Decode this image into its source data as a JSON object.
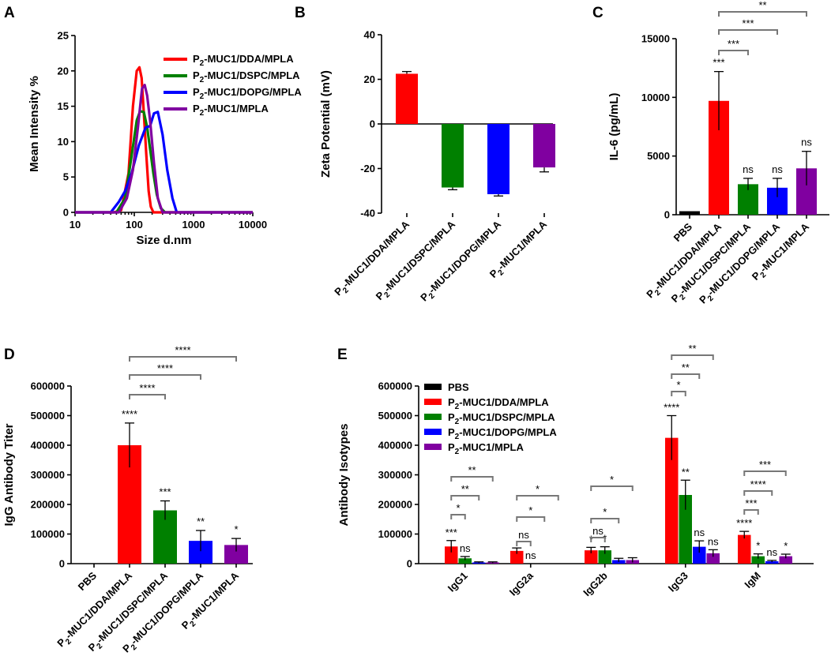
{
  "colors": {
    "PBS": "#000000",
    "DDA": "#ff0000",
    "DSPC": "#008000",
    "DOPG": "#0000ff",
    "MPLA": "#8000a0",
    "bracket": "#777777"
  },
  "chart_data": [
    {
      "panel": "A",
      "type": "line",
      "xscale": "log",
      "xlabel": "Size d.nm",
      "ylabel": "Mean Intensity %",
      "xlim": [
        10,
        10000
      ],
      "ylim": [
        0,
        25
      ],
      "xticks": [
        "10",
        "100",
        "1000",
        "10000"
      ],
      "yticks": [
        "0",
        "5",
        "10",
        "15",
        "20",
        "25"
      ],
      "legend_position": "top-right",
      "series": [
        {
          "name": "P₂-MUC1/DDA/MPLA",
          "color_key": "DDA",
          "x": [
            45,
            60,
            80,
            95,
            110,
            122,
            133,
            145,
            160,
            175,
            190,
            210
          ],
          "y": [
            0,
            0.3,
            5.5,
            15,
            20,
            20.5,
            19,
            14,
            8,
            3,
            0.8,
            0
          ]
        },
        {
          "name": "P₂-MUC1/DSPC/MPLA",
          "color_key": "DSPC",
          "x": [
            50,
            70,
            90,
            110,
            125,
            145,
            165,
            185,
            210,
            240,
            280,
            330
          ],
          "y": [
            0,
            2,
            8,
            13,
            14.3,
            14.2,
            12,
            9,
            5.5,
            2.5,
            0.6,
            0
          ]
        },
        {
          "name": "P₂-MUC1/DOPG/MPLA",
          "color_key": "DOPG",
          "x": [
            40,
            55,
            70,
            90,
            120,
            155,
            185,
            215,
            250,
            300,
            360,
            440,
            520
          ],
          "y": [
            0,
            1.5,
            3,
            5.5,
            9.5,
            12,
            12.2,
            14,
            14.2,
            11,
            6,
            2,
            0
          ]
        },
        {
          "name": "P₂-MUC1/MPLA",
          "color_key": "MPLA",
          "x": [
            55,
            75,
            95,
            115,
            135,
            150,
            165,
            185,
            215,
            250,
            300
          ],
          "y": [
            0,
            2,
            6,
            12,
            17.5,
            18,
            16.5,
            13,
            7,
            2,
            0
          ]
        }
      ]
    },
    {
      "panel": "B",
      "type": "bar",
      "ylabel": "Zeta Potential (mV)",
      "ylim": [
        -40,
        40
      ],
      "yticks": [
        "-40",
        "-20",
        "0",
        "20",
        "40"
      ],
      "categories": [
        "P₂-MUC1/DDA/MPLA",
        "P₂-MUC1/DSPC/MPLA",
        "P₂-MUC1/DOPG/MPLA",
        "P₂-MUC1/MPLA"
      ],
      "color_keys": [
        "DDA",
        "DSPC",
        "DOPG",
        "MPLA"
      ],
      "values": [
        22.5,
        -28.5,
        -31.5,
        -19.5
      ],
      "errors": [
        1.0,
        1.0,
        0.8,
        2.0
      ]
    },
    {
      "panel": "C",
      "type": "bar",
      "ylabel": "IL-6 (pg/mL)",
      "ylim": [
        0,
        15000
      ],
      "yticks": [
        "0",
        "5000",
        "10000",
        "15000"
      ],
      "categories": [
        "PBS",
        "P₂-MUC1/DDA/MPLA",
        "P₂-MUC1/DSPC/MPLA",
        "P₂-MUC1/DOPG/MPLA",
        "P₂-MUC1/MPLA"
      ],
      "color_keys": [
        "PBS",
        "DDA",
        "DSPC",
        "DOPG",
        "MPLA"
      ],
      "values": [
        300,
        9700,
        2600,
        2300,
        3950
      ],
      "errors": [
        0,
        2500,
        500,
        800,
        1450
      ],
      "annotations": [
        "",
        "***",
        "ns",
        "ns",
        "ns"
      ],
      "brackets": [
        {
          "from": 1,
          "to": 2,
          "label": "***"
        },
        {
          "from": 1,
          "to": 3,
          "label": "***"
        },
        {
          "from": 1,
          "to": 4,
          "label": "**"
        }
      ]
    },
    {
      "panel": "D",
      "type": "bar",
      "ylabel": "IgG Antibody Titer",
      "ylim": [
        0,
        600000
      ],
      "yticks": [
        "0",
        "100000",
        "200000",
        "300000",
        "400000",
        "500000",
        "600000"
      ],
      "categories": [
        "PBS",
        "P₂-MUC1/DDA/MPLA",
        "P₂-MUC1/DSPC/MPLA",
        "P₂-MUC1/DOPG/MPLA",
        "P₂-MUC1/MPLA"
      ],
      "color_keys": [
        "PBS",
        "DDA",
        "DSPC",
        "DOPG",
        "MPLA"
      ],
      "values": [
        0,
        400000,
        180000,
        77000,
        63000
      ],
      "errors": [
        0,
        75000,
        32000,
        35000,
        22000
      ],
      "annotations": [
        "",
        "****",
        "***",
        "**",
        "*"
      ],
      "brackets": [
        {
          "from": 1,
          "to": 2,
          "label": "****"
        },
        {
          "from": 1,
          "to": 3,
          "label": "****"
        },
        {
          "from": 1,
          "to": 4,
          "label": "****"
        }
      ]
    },
    {
      "panel": "E",
      "type": "bar",
      "ylabel": "Antibody Isotypes",
      "ylim": [
        0,
        600000
      ],
      "yticks": [
        "0",
        "100000",
        "200000",
        "300000",
        "400000",
        "500000",
        "600000"
      ],
      "categories": [
        "IgG1",
        "IgG2a",
        "IgG2b",
        "IgG3",
        "IgM"
      ],
      "legend_position": "top-left",
      "series": [
        {
          "name": "PBS",
          "color_key": "PBS",
          "values": [
            0,
            0,
            0,
            0,
            0
          ],
          "errors": [
            0,
            0,
            0,
            0,
            0
          ]
        },
        {
          "name": "P₂-MUC1/DDA/MPLA",
          "color_key": "DDA",
          "values": [
            58000,
            43000,
            45000,
            425000,
            97000
          ],
          "errors": [
            20000,
            10000,
            10000,
            75000,
            12000
          ]
        },
        {
          "name": "P₂-MUC1/DSPC/MPLA",
          "color_key": "DSPC",
          "values": [
            18000,
            0,
            45000,
            232000,
            25000
          ],
          "errors": [
            6000,
            0,
            12000,
            50000,
            8000
          ]
        },
        {
          "name": "P₂-MUC1/DOPG/MPLA",
          "color_key": "DOPG",
          "values": [
            4000,
            0,
            12000,
            57000,
            8000
          ],
          "errors": [
            2000,
            0,
            6000,
            20000,
            3000
          ]
        },
        {
          "name": "P₂-MUC1/MPLA",
          "color_key": "MPLA",
          "values": [
            4000,
            0,
            12000,
            35000,
            25000
          ],
          "errors": [
            2000,
            0,
            8000,
            12000,
            7000
          ]
        }
      ],
      "annotations": [
        [
          "",
          "***",
          "ns",
          "",
          ""
        ],
        [
          "",
          "",
          "ns",
          "",
          ""
        ],
        [
          "",
          "*",
          "*",
          "",
          ""
        ],
        [
          "",
          "****",
          "**",
          "ns",
          "ns"
        ],
        [
          "",
          "****",
          "*",
          "ns",
          "*"
        ]
      ],
      "brackets": [
        [
          {
            "from": 1,
            "to": 2,
            "label": "*"
          },
          {
            "from": 1,
            "to": 3,
            "label": "**"
          },
          {
            "from": 1,
            "to": 4,
            "label": "**"
          }
        ],
        [
          {
            "from": 1,
            "to": 2,
            "label": "ns"
          },
          {
            "from": 1,
            "to": 3,
            "label": "*"
          },
          {
            "from": 1,
            "to": 4,
            "label": "*"
          }
        ],
        [
          {
            "from": 1,
            "to": 2,
            "label": "ns"
          },
          {
            "from": 1,
            "to": 3,
            "label": "*"
          },
          {
            "from": 1,
            "to": 4,
            "label": "*"
          }
        ],
        [
          {
            "from": 1,
            "to": 2,
            "label": "*"
          },
          {
            "from": 1,
            "to": 3,
            "label": "**"
          },
          {
            "from": 1,
            "to": 4,
            "label": "**"
          }
        ],
        [
          {
            "from": 1,
            "to": 2,
            "label": "***"
          },
          {
            "from": 1,
            "to": 3,
            "label": "****"
          },
          {
            "from": 1,
            "to": 4,
            "label": "***"
          }
        ]
      ]
    }
  ]
}
